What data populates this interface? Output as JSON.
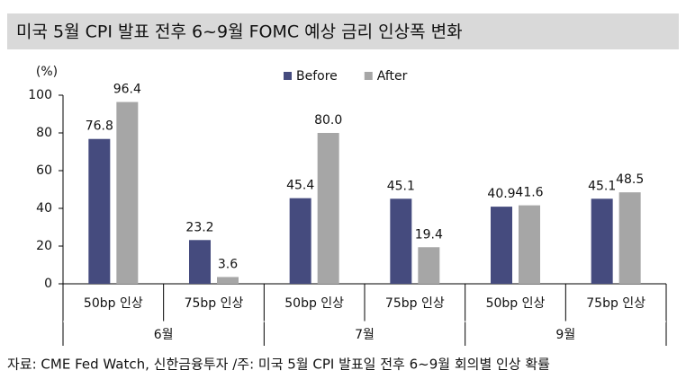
{
  "chart_data": {
    "type": "bar",
    "title": "미국 5월 CPI 발표 전후 6~9월 FOMC 예상 금리 인상폭 변화",
    "y_label": "(%)",
    "categories": [
      "50bp 인상",
      "75bp 인상",
      "50bp 인상",
      "75bp 인상",
      "50bp 인상",
      "75bp 인상"
    ],
    "groups": [
      "6월",
      "7월",
      "9월"
    ],
    "series": [
      {
        "name": "Before",
        "color": "#454b7e",
        "values": [
          76.8,
          23.2,
          45.4,
          45.1,
          40.9,
          45.1
        ]
      },
      {
        "name": "After",
        "color": "#a6a6a6",
        "values": [
          96.4,
          3.6,
          80.0,
          19.4,
          41.6,
          48.5
        ],
        "value_labels": [
          "96.4",
          "3.6",
          "80.0",
          "19.4",
          "41.6",
          "48.5"
        ]
      }
    ],
    "ylim": [
      0,
      100
    ],
    "yticks": [
      0,
      20,
      40,
      60,
      80,
      100
    ],
    "legend": "top",
    "note": "자료: CME Fed Watch, 신한금융투자  /주: 미국 5월 CPI 발표일 전후 6~9월 회의별 인상 확률"
  }
}
